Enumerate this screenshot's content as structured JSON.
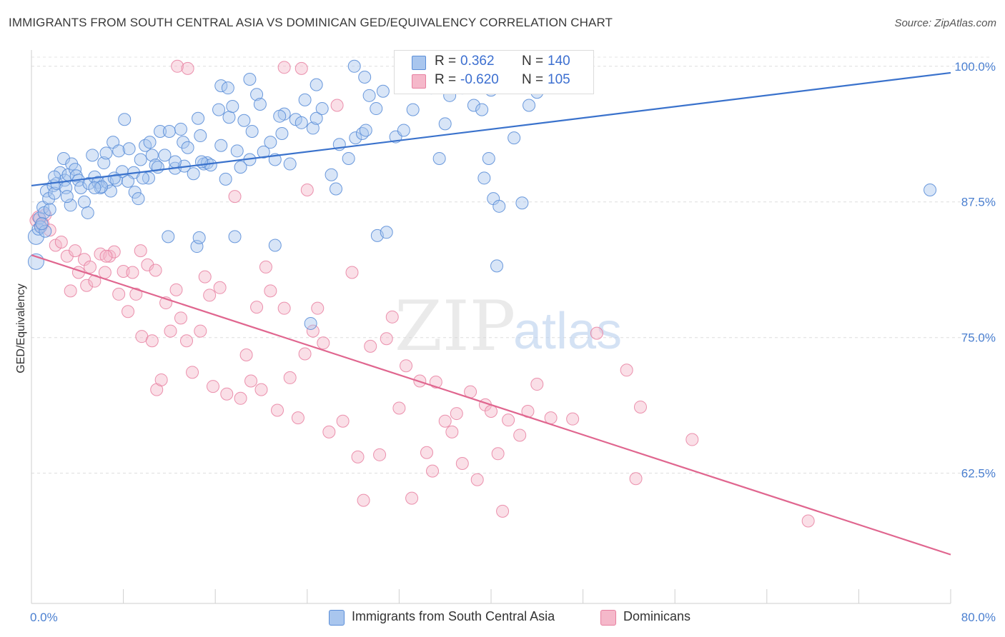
{
  "title": "IMMIGRANTS FROM SOUTH CENTRAL ASIA VS DOMINICAN GED/EQUIVALENCY CORRELATION CHART",
  "source": "Source: ZipAtlas.com",
  "watermark": {
    "zip": "ZIP",
    "atlas": "atlas"
  },
  "legend_top": {
    "r_label": "R =",
    "n_label": "N =",
    "rows": [
      {
        "r": "0.362",
        "n": "140"
      },
      {
        "r": "-0.620",
        "n": "105"
      }
    ]
  },
  "colors": {
    "blue_fill": "#a9c6ee",
    "blue_stroke": "#5b8ed8",
    "blue_line": "#3a72cc",
    "pink_fill": "#f5b8ca",
    "pink_stroke": "#e77fa0",
    "pink_line": "#e0668f",
    "tick_text": "#4a7fd0"
  },
  "chart_data": {
    "type": "scatter",
    "title": "IMMIGRANTS FROM SOUTH CENTRAL ASIA VS DOMINICAN GED/EQUIVALENCY CORRELATION CHART",
    "xlabel": "",
    "ylabel": "GED/Equivalency",
    "xlim": [
      0,
      80
    ],
    "ylim": [
      50.5,
      101.5
    ],
    "x_tick_labels": [
      "0.0%",
      "80.0%"
    ],
    "y_ticks": [
      62.5,
      75.0,
      87.5,
      100.0
    ],
    "y_tick_labels": [
      "62.5%",
      "75.0%",
      "87.5%",
      "100.0%"
    ],
    "grid": true,
    "legend_position": "bottom",
    "series": [
      {
        "name": "Immigrants from South Central Asia",
        "r": 0.362,
        "n": 140,
        "trend": {
          "x": [
            0,
            80
          ],
          "y": [
            89.0,
            99.4
          ]
        },
        "points": [
          [
            0.4,
            84.3
          ],
          [
            0.4,
            82.0
          ],
          [
            0.6,
            85.0
          ],
          [
            0.7,
            86.0
          ],
          [
            0.8,
            85.2
          ],
          [
            1.0,
            87.0
          ],
          [
            1.1,
            86.5
          ],
          [
            1.2,
            84.8
          ],
          [
            1.3,
            88.5
          ],
          [
            1.5,
            87.8
          ],
          [
            1.6,
            86.8
          ],
          [
            1.9,
            89.0
          ],
          [
            2.0,
            88.3
          ],
          [
            2.2,
            89.2
          ],
          [
            2.5,
            90.2
          ],
          [
            2.8,
            91.5
          ],
          [
            2.9,
            89.5
          ],
          [
            3.0,
            88.8
          ],
          [
            3.2,
            90.0
          ],
          [
            3.4,
            87.2
          ],
          [
            3.5,
            91.0
          ],
          [
            3.8,
            90.5
          ],
          [
            3.9,
            89.9
          ],
          [
            4.1,
            89.5
          ],
          [
            4.3,
            88.8
          ],
          [
            4.6,
            87.5
          ],
          [
            4.9,
            86.5
          ],
          [
            5.0,
            89.2
          ],
          [
            5.3,
            91.8
          ],
          [
            5.5,
            89.8
          ],
          [
            5.8,
            89.3
          ],
          [
            6.0,
            88.8
          ],
          [
            6.3,
            91.1
          ],
          [
            6.5,
            92.0
          ],
          [
            6.6,
            89.3
          ],
          [
            6.9,
            88.5
          ],
          [
            7.1,
            93.0
          ],
          [
            7.4,
            89.5
          ],
          [
            7.6,
            92.2
          ],
          [
            7.9,
            90.3
          ],
          [
            8.1,
            95.1
          ],
          [
            8.5,
            92.4
          ],
          [
            8.9,
            90.2
          ],
          [
            9.0,
            88.4
          ],
          [
            9.3,
            87.8
          ],
          [
            9.5,
            91.4
          ],
          [
            9.9,
            92.7
          ],
          [
            10.3,
            93.0
          ],
          [
            10.5,
            91.8
          ],
          [
            10.8,
            90.9
          ],
          [
            11.2,
            94.0
          ],
          [
            11.6,
            91.8
          ],
          [
            12.0,
            94.0
          ],
          [
            12.5,
            90.6
          ],
          [
            13.0,
            94.2
          ],
          [
            13.2,
            93.0
          ],
          [
            13.6,
            92.5
          ],
          [
            14.1,
            90.1
          ],
          [
            14.5,
            95.2
          ],
          [
            14.7,
            93.6
          ],
          [
            15.0,
            91.0
          ],
          [
            15.3,
            91.1
          ],
          [
            15.6,
            90.9
          ],
          [
            16.3,
            96.0
          ],
          [
            16.5,
            92.7
          ],
          [
            16.9,
            89.6
          ],
          [
            17.2,
            95.3
          ],
          [
            17.5,
            96.3
          ],
          [
            17.9,
            92.2
          ],
          [
            18.2,
            90.7
          ],
          [
            18.5,
            95.0
          ],
          [
            19.0,
            91.4
          ],
          [
            19.2,
            94.0
          ],
          [
            19.6,
            97.4
          ],
          [
            19.9,
            96.5
          ],
          [
            20.2,
            92.1
          ],
          [
            20.8,
            93.0
          ],
          [
            21.2,
            91.4
          ],
          [
            21.8,
            93.8
          ],
          [
            22.0,
            95.6
          ],
          [
            22.5,
            91.0
          ],
          [
            23.0,
            95.1
          ],
          [
            23.8,
            96.9
          ],
          [
            24.5,
            94.3
          ],
          [
            24.8,
            95.2
          ],
          [
            25.3,
            96.1
          ],
          [
            26.1,
            90.0
          ],
          [
            26.8,
            92.8
          ],
          [
            27.6,
            91.5
          ],
          [
            28.2,
            93.4
          ],
          [
            28.8,
            93.8
          ],
          [
            29.1,
            94.1
          ],
          [
            29.4,
            97.3
          ],
          [
            30.0,
            96.1
          ],
          [
            30.6,
            97.7
          ],
          [
            31.7,
            93.5
          ],
          [
            32.4,
            94.1
          ],
          [
            33.2,
            96.0
          ],
          [
            34.5,
            99.8
          ],
          [
            34.8,
            98.0
          ],
          [
            35.5,
            91.5
          ],
          [
            36.0,
            94.7
          ],
          [
            36.4,
            97.3
          ],
          [
            37.5,
            98.0
          ],
          [
            38.5,
            96.4
          ],
          [
            39.2,
            96.0
          ],
          [
            40.0,
            97.8
          ],
          [
            42.0,
            93.4
          ],
          [
            43.3,
            96.4
          ],
          [
            44.0,
            97.6
          ],
          [
            11.9,
            84.3
          ],
          [
            14.4,
            83.4
          ],
          [
            14.6,
            84.2
          ],
          [
            17.7,
            84.3
          ],
          [
            21.2,
            83.5
          ],
          [
            24.3,
            76.3
          ],
          [
            30.1,
            84.4
          ],
          [
            30.9,
            84.7
          ],
          [
            40.5,
            81.6
          ],
          [
            37.6,
            99.0
          ],
          [
            38.5,
            98.5
          ],
          [
            36.7,
            98.9
          ],
          [
            28.1,
            100.0
          ],
          [
            29.0,
            99.0
          ],
          [
            24.8,
            98.3
          ],
          [
            23.5,
            94.8
          ],
          [
            21.6,
            95.4
          ],
          [
            19.0,
            98.8
          ],
          [
            16.5,
            98.2
          ],
          [
            14.8,
            91.2
          ],
          [
            13.3,
            90.8
          ],
          [
            12.5,
            91.2
          ],
          [
            11.0,
            90.7
          ],
          [
            10.2,
            89.7
          ],
          [
            9.7,
            89.7
          ],
          [
            8.4,
            89.4
          ],
          [
            7.2,
            89.7
          ],
          [
            6.1,
            88.9
          ],
          [
            5.5,
            88.8
          ],
          [
            3.1,
            88.0
          ],
          [
            39.4,
            89.7
          ],
          [
            39.8,
            91.5
          ],
          [
            40.2,
            87.8
          ],
          [
            40.7,
            87.1
          ],
          [
            42.7,
            87.4
          ],
          [
            78.2,
            88.6
          ],
          [
            17.1,
            98.0
          ],
          [
            26.5,
            88.7
          ],
          [
            2.0,
            89.8
          ],
          [
            0.9,
            85.5
          ]
        ]
      },
      {
        "name": "Dominicans",
        "r": -0.62,
        "n": 105,
        "trend": {
          "x": [
            0,
            80
          ],
          "y": [
            82.6,
            55.0
          ]
        },
        "points": [
          [
            0.4,
            85.8
          ],
          [
            0.6,
            86.1
          ],
          [
            0.8,
            85.3
          ],
          [
            1.0,
            85.5
          ],
          [
            1.2,
            86.3
          ],
          [
            1.6,
            84.9
          ],
          [
            2.1,
            83.5
          ],
          [
            2.6,
            83.8
          ],
          [
            3.1,
            82.5
          ],
          [
            3.4,
            79.3
          ],
          [
            3.8,
            83.0
          ],
          [
            4.1,
            81.0
          ],
          [
            4.6,
            82.2
          ],
          [
            4.8,
            79.8
          ],
          [
            5.1,
            81.5
          ],
          [
            5.5,
            80.2
          ],
          [
            6.0,
            82.7
          ],
          [
            6.4,
            81.0
          ],
          [
            6.8,
            82.5
          ],
          [
            7.2,
            82.9
          ],
          [
            7.6,
            79.0
          ],
          [
            8.0,
            81.1
          ],
          [
            8.4,
            77.4
          ],
          [
            8.8,
            81.0
          ],
          [
            9.1,
            79.0
          ],
          [
            9.6,
            75.1
          ],
          [
            10.1,
            81.7
          ],
          [
            10.5,
            74.7
          ],
          [
            10.9,
            70.2
          ],
          [
            11.3,
            71.1
          ],
          [
            11.7,
            78.2
          ],
          [
            12.1,
            75.6
          ],
          [
            12.6,
            79.4
          ],
          [
            13.0,
            76.8
          ],
          [
            13.5,
            74.7
          ],
          [
            14.0,
            71.8
          ],
          [
            14.7,
            75.6
          ],
          [
            15.1,
            80.6
          ],
          [
            15.5,
            78.9
          ],
          [
            15.8,
            70.5
          ],
          [
            16.4,
            79.6
          ],
          [
            17.0,
            69.8
          ],
          [
            17.7,
            88.0
          ],
          [
            18.2,
            69.4
          ],
          [
            18.7,
            73.4
          ],
          [
            19.1,
            71.0
          ],
          [
            19.6,
            77.8
          ],
          [
            20.0,
            70.2
          ],
          [
            20.4,
            81.5
          ],
          [
            20.8,
            79.3
          ],
          [
            21.4,
            68.3
          ],
          [
            22.0,
            77.7
          ],
          [
            22.5,
            71.3
          ],
          [
            23.2,
            67.6
          ],
          [
            23.8,
            73.5
          ],
          [
            24.5,
            75.6
          ],
          [
            24.9,
            77.7
          ],
          [
            25.4,
            74.5
          ],
          [
            25.9,
            66.3
          ],
          [
            26.6,
            96.4
          ],
          [
            27.1,
            67.3
          ],
          [
            27.9,
            81.0
          ],
          [
            28.4,
            64.0
          ],
          [
            28.9,
            60.0
          ],
          [
            29.5,
            74.2
          ],
          [
            30.3,
            64.2
          ],
          [
            30.9,
            74.9
          ],
          [
            31.4,
            76.9
          ],
          [
            32.0,
            68.5
          ],
          [
            32.6,
            72.4
          ],
          [
            33.1,
            60.2
          ],
          [
            33.8,
            71.0
          ],
          [
            34.4,
            64.4
          ],
          [
            34.9,
            62.7
          ],
          [
            35.2,
            70.9
          ],
          [
            36.0,
            67.3
          ],
          [
            36.6,
            66.3
          ],
          [
            37.0,
            68.0
          ],
          [
            37.5,
            63.4
          ],
          [
            38.2,
            70.0
          ],
          [
            38.8,
            61.9
          ],
          [
            39.5,
            68.8
          ],
          [
            40.0,
            68.2
          ],
          [
            40.6,
            64.3
          ],
          [
            41.0,
            59.0
          ],
          [
            41.5,
            67.4
          ],
          [
            42.5,
            66.0
          ],
          [
            43.2,
            68.2
          ],
          [
            44.0,
            70.7
          ],
          [
            45.2,
            67.6
          ],
          [
            47.1,
            67.5
          ],
          [
            49.2,
            75.4
          ],
          [
            51.8,
            72.0
          ],
          [
            52.6,
            62.0
          ],
          [
            53.0,
            68.6
          ],
          [
            57.5,
            65.6
          ],
          [
            67.6,
            58.1
          ],
          [
            24.0,
            88.6
          ],
          [
            23.5,
            99.8
          ],
          [
            22.0,
            99.9
          ],
          [
            12.7,
            100.0
          ],
          [
            13.6,
            99.8
          ],
          [
            6.5,
            82.5
          ],
          [
            9.5,
            83.0
          ],
          [
            10.8,
            81.2
          ]
        ]
      }
    ]
  }
}
